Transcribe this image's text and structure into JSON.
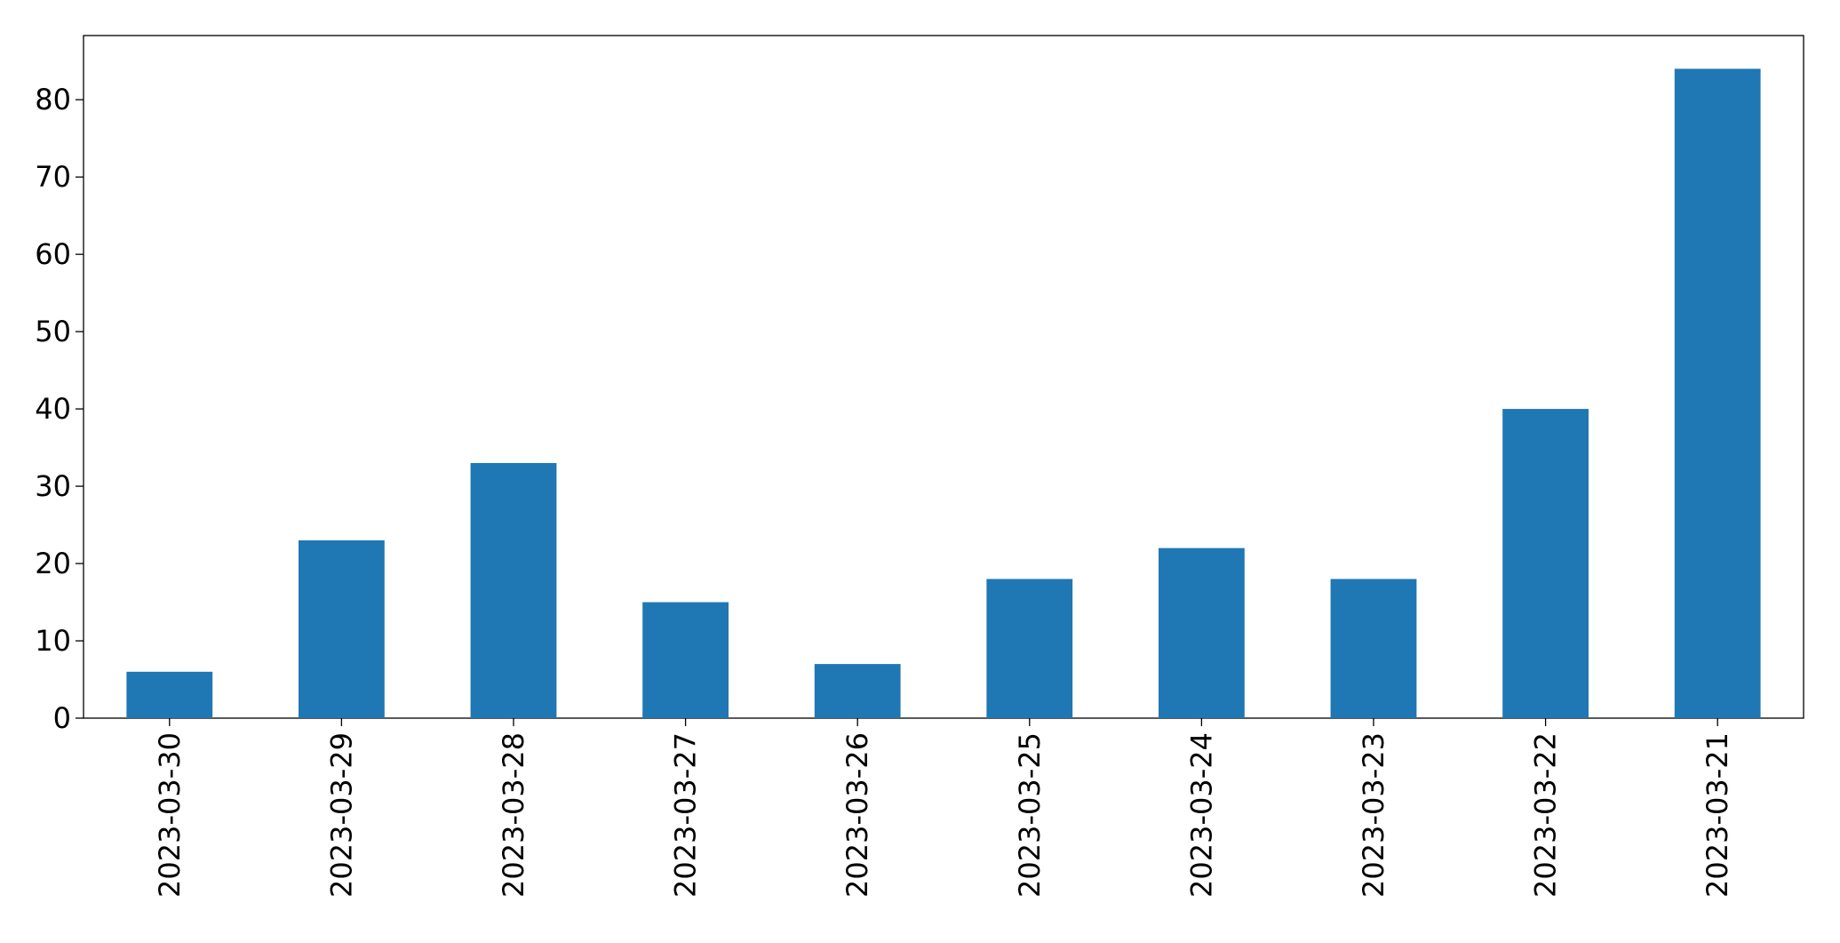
{
  "chart_data": {
    "type": "bar",
    "categories": [
      "2023-03-30",
      "2023-03-29",
      "2023-03-28",
      "2023-03-27",
      "2023-03-26",
      "2023-03-25",
      "2023-03-24",
      "2023-03-23",
      "2023-03-22",
      "2023-03-21"
    ],
    "values": [
      6,
      23,
      33,
      15,
      7,
      18,
      22,
      18,
      40,
      84
    ],
    "color": "#1f77b4",
    "ylim": [
      0,
      88.3
    ],
    "yticks": [
      0,
      10,
      20,
      30,
      40,
      50,
      60,
      70,
      80
    ],
    "grid": false
  }
}
